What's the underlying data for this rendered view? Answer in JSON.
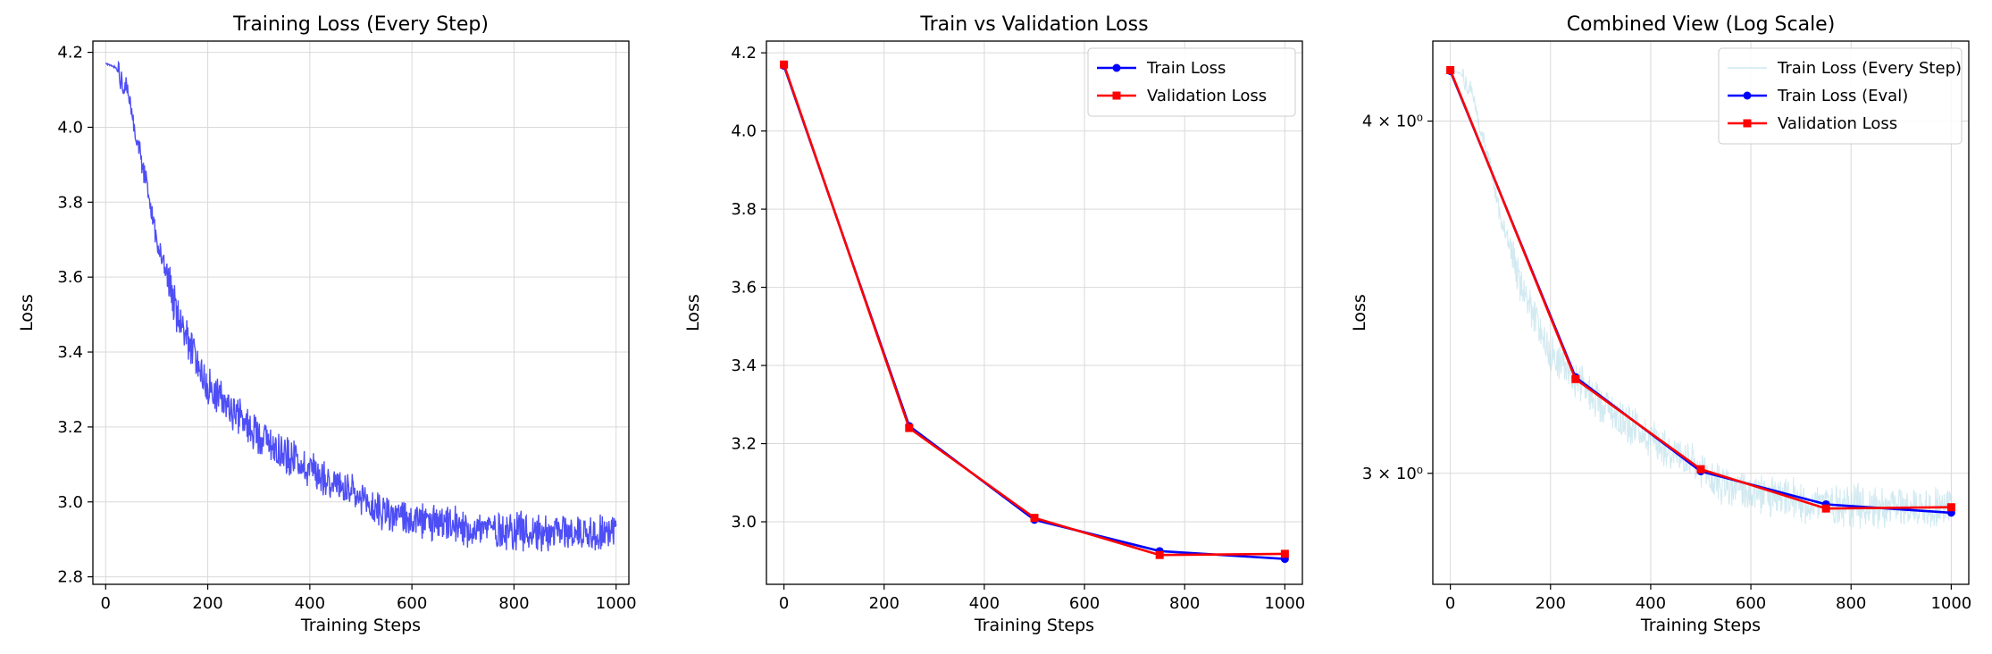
{
  "chart_data": [
    {
      "type": "line",
      "title": "Training Loss (Every Step)",
      "xlabel": "Training Steps",
      "ylabel": "Loss",
      "xlim": [
        -25,
        1025
      ],
      "ylim": [
        2.78,
        4.23
      ],
      "xticks": [
        0,
        200,
        400,
        600,
        800,
        1000
      ],
      "xtick_labels": [
        "0",
        "200",
        "400",
        "600",
        "800",
        "1000"
      ],
      "yticks": [
        2.8,
        3.0,
        3.2,
        3.4,
        3.6,
        3.8,
        4.0,
        4.2
      ],
      "ytick_labels": [
        "2.8",
        "3.0",
        "3.2",
        "3.4",
        "3.6",
        "3.8",
        "4.0",
        "4.2"
      ],
      "grid": true,
      "series": [
        {
          "color": "#3b3bf5",
          "style": "noisy-every-step",
          "x": [
            0,
            20,
            40,
            60,
            80,
            100,
            120,
            140,
            160,
            180,
            200,
            250,
            300,
            350,
            400,
            450,
            500,
            550,
            600,
            650,
            700,
            750,
            800,
            850,
            900,
            950,
            1000
          ],
          "y": [
            4.17,
            4.16,
            4.1,
            3.98,
            3.85,
            3.7,
            3.6,
            3.5,
            3.43,
            3.37,
            3.31,
            3.24,
            3.18,
            3.13,
            3.09,
            3.05,
            3.0,
            2.97,
            2.95,
            2.94,
            2.93,
            2.93,
            2.925,
            2.92,
            2.92,
            2.92,
            2.92
          ]
        }
      ]
    },
    {
      "type": "line",
      "title": "Train vs Validation Loss",
      "xlabel": "Training Steps",
      "ylabel": "Loss",
      "xlim": [
        -35,
        1035
      ],
      "ylim": [
        2.84,
        4.23
      ],
      "xticks": [
        0,
        200,
        400,
        600,
        800,
        1000
      ],
      "xtick_labels": [
        "0",
        "200",
        "400",
        "600",
        "800",
        "1000"
      ],
      "yticks": [
        3.0,
        3.2,
        3.4,
        3.6,
        3.8,
        4.0,
        4.2
      ],
      "ytick_labels": [
        "3.0",
        "3.2",
        "3.4",
        "3.6",
        "3.8",
        "4.0",
        "4.2"
      ],
      "grid": true,
      "legend": "top-right",
      "series": [
        {
          "name": "Train Loss",
          "color": "#0000ff",
          "marker": "circle",
          "x": [
            0,
            250,
            500,
            750,
            1000
          ],
          "y": [
            4.167,
            3.245,
            3.005,
            2.925,
            2.905
          ]
        },
        {
          "name": "Validation Loss",
          "color": "#ff0000",
          "marker": "square",
          "x": [
            0,
            250,
            500,
            750,
            1000
          ],
          "y": [
            4.17,
            3.24,
            3.01,
            2.915,
            2.918
          ]
        }
      ]
    },
    {
      "type": "line",
      "title": "Combined View (Log Scale)",
      "xlabel": "Training Steps",
      "ylabel": "Loss",
      "xlim": [
        -35,
        1035
      ],
      "ylim": [
        2.74,
        4.27
      ],
      "yscale": "log",
      "xticks": [
        0,
        200,
        400,
        600,
        800,
        1000
      ],
      "xtick_labels": [
        "0",
        "200",
        "400",
        "600",
        "800",
        "1000"
      ],
      "yticks": [
        3,
        4
      ],
      "ytick_labels": [
        "3 × 10⁰",
        "4 × 10⁰"
      ],
      "grid": true,
      "legend": "top-right",
      "series": [
        {
          "name": "Train Loss (Every Step)",
          "color": "#add8e6",
          "style": "noisy-every-step",
          "x": [
            0,
            20,
            40,
            60,
            80,
            100,
            120,
            140,
            160,
            180,
            200,
            250,
            300,
            350,
            400,
            450,
            500,
            550,
            600,
            650,
            700,
            750,
            800,
            850,
            900,
            950,
            1000
          ],
          "y": [
            4.17,
            4.16,
            4.1,
            3.98,
            3.85,
            3.7,
            3.6,
            3.5,
            3.43,
            3.37,
            3.31,
            3.24,
            3.18,
            3.13,
            3.09,
            3.05,
            3.0,
            2.97,
            2.95,
            2.94,
            2.93,
            2.93,
            2.925,
            2.92,
            2.92,
            2.92,
            2.92
          ]
        },
        {
          "name": "Train Loss (Eval)",
          "color": "#0000ff",
          "marker": "circle",
          "x": [
            0,
            250,
            500,
            750,
            1000
          ],
          "y": [
            4.167,
            3.245,
            3.005,
            2.925,
            2.905
          ]
        },
        {
          "name": "Validation Loss",
          "color": "#ff0000",
          "marker": "square",
          "x": [
            0,
            250,
            500,
            750,
            1000
          ],
          "y": [
            4.17,
            3.24,
            3.01,
            2.915,
            2.918
          ]
        }
      ]
    }
  ]
}
